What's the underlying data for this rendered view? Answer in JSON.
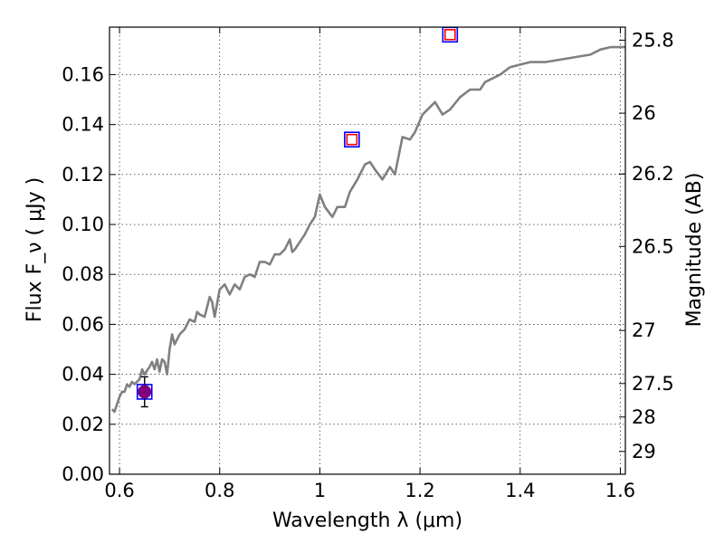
{
  "chart_data": {
    "type": "scatter",
    "xlabel": "Wavelength  λ (μm)",
    "ylabel": "Flux  F_ν ( μJy )",
    "y2label": "Magnitude (AB)",
    "xlim": [
      0.58,
      1.61
    ],
    "ylim": [
      0.0,
      0.179
    ],
    "grid": true,
    "x_ticks": [
      0.6,
      0.8,
      1.0,
      1.2,
      1.4,
      1.6
    ],
    "x_tick_labels": [
      "0.6",
      "0.8",
      "1",
      "1.2",
      "1.4",
      "1.6"
    ],
    "y_ticks": [
      0.0,
      0.02,
      0.04,
      0.06,
      0.08,
      0.1,
      0.12,
      0.14,
      0.16
    ],
    "y_tick_labels": [
      "0.00",
      "0.02",
      "0.04",
      "0.06",
      "0.08",
      "0.10",
      "0.12",
      "0.14",
      "0.16"
    ],
    "y2_ticks": [
      25.8,
      26,
      26.2,
      26.5,
      27,
      27.5,
      28,
      29
    ],
    "y2_tick_labels": [
      "25.8",
      "26",
      "26.2",
      "26.5",
      "27",
      "27.5",
      "28",
      "29"
    ],
    "series": [
      {
        "kind": "line",
        "color": "#808080",
        "points": [
          [
            0.585,
            0.026
          ],
          [
            0.59,
            0.025
          ],
          [
            0.595,
            0.028
          ],
          [
            0.6,
            0.031
          ],
          [
            0.605,
            0.033
          ],
          [
            0.61,
            0.033
          ],
          [
            0.615,
            0.036
          ],
          [
            0.62,
            0.035
          ],
          [
            0.625,
            0.037
          ],
          [
            0.63,
            0.036
          ],
          [
            0.64,
            0.038
          ],
          [
            0.645,
            0.042
          ],
          [
            0.65,
            0.04
          ],
          [
            0.66,
            0.043
          ],
          [
            0.665,
            0.045
          ],
          [
            0.67,
            0.042
          ],
          [
            0.675,
            0.046
          ],
          [
            0.68,
            0.041
          ],
          [
            0.685,
            0.046
          ],
          [
            0.69,
            0.045
          ],
          [
            0.695,
            0.04
          ],
          [
            0.7,
            0.05
          ],
          [
            0.705,
            0.056
          ],
          [
            0.71,
            0.052
          ],
          [
            0.72,
            0.056
          ],
          [
            0.73,
            0.058
          ],
          [
            0.74,
            0.062
          ],
          [
            0.75,
            0.061
          ],
          [
            0.755,
            0.065
          ],
          [
            0.76,
            0.064
          ],
          [
            0.77,
            0.063
          ],
          [
            0.78,
            0.071
          ],
          [
            0.785,
            0.069
          ],
          [
            0.79,
            0.063
          ],
          [
            0.8,
            0.074
          ],
          [
            0.81,
            0.076
          ],
          [
            0.82,
            0.072
          ],
          [
            0.83,
            0.076
          ],
          [
            0.84,
            0.074
          ],
          [
            0.85,
            0.079
          ],
          [
            0.86,
            0.08
          ],
          [
            0.87,
            0.079
          ],
          [
            0.88,
            0.085
          ],
          [
            0.89,
            0.085
          ],
          [
            0.9,
            0.084
          ],
          [
            0.91,
            0.088
          ],
          [
            0.92,
            0.088
          ],
          [
            0.93,
            0.09
          ],
          [
            0.94,
            0.094
          ],
          [
            0.945,
            0.089
          ],
          [
            0.95,
            0.09
          ],
          [
            0.96,
            0.093
          ],
          [
            0.97,
            0.096
          ],
          [
            0.98,
            0.1
          ],
          [
            0.99,
            0.103
          ],
          [
            1.0,
            0.112
          ],
          [
            1.01,
            0.107
          ],
          [
            1.025,
            0.103
          ],
          [
            1.035,
            0.107
          ],
          [
            1.05,
            0.107
          ],
          [
            1.06,
            0.113
          ],
          [
            1.075,
            0.118
          ],
          [
            1.09,
            0.124
          ],
          [
            1.1,
            0.125
          ],
          [
            1.11,
            0.122
          ],
          [
            1.125,
            0.118
          ],
          [
            1.14,
            0.123
          ],
          [
            1.15,
            0.12
          ],
          [
            1.165,
            0.135
          ],
          [
            1.18,
            0.134
          ],
          [
            1.19,
            0.137
          ],
          [
            1.205,
            0.144
          ],
          [
            1.23,
            0.149
          ],
          [
            1.245,
            0.144
          ],
          [
            1.26,
            0.146
          ],
          [
            1.28,
            0.151
          ],
          [
            1.3,
            0.154
          ],
          [
            1.32,
            0.154
          ],
          [
            1.33,
            0.157
          ],
          [
            1.36,
            0.16
          ],
          [
            1.38,
            0.163
          ],
          [
            1.4,
            0.164
          ],
          [
            1.42,
            0.165
          ],
          [
            1.45,
            0.165
          ],
          [
            1.48,
            0.166
          ],
          [
            1.51,
            0.167
          ],
          [
            1.54,
            0.168
          ],
          [
            1.56,
            0.17
          ],
          [
            1.58,
            0.171
          ],
          [
            1.61,
            0.171
          ]
        ]
      },
      {
        "kind": "markers",
        "marker": "square",
        "color": "#0000ff",
        "points": [
          [
            0.65,
            0.033
          ],
          [
            1.064,
            0.134
          ],
          [
            1.26,
            0.176
          ]
        ]
      },
      {
        "kind": "markers",
        "marker": "square",
        "color": "#ff0000",
        "points": [
          [
            1.064,
            0.134
          ],
          [
            1.26,
            0.176
          ]
        ]
      },
      {
        "kind": "errorbar",
        "marker": "circle",
        "color": "#800080",
        "points": [
          {
            "x": 0.65,
            "y": 0.033,
            "yerr": 0.006
          }
        ]
      }
    ]
  }
}
